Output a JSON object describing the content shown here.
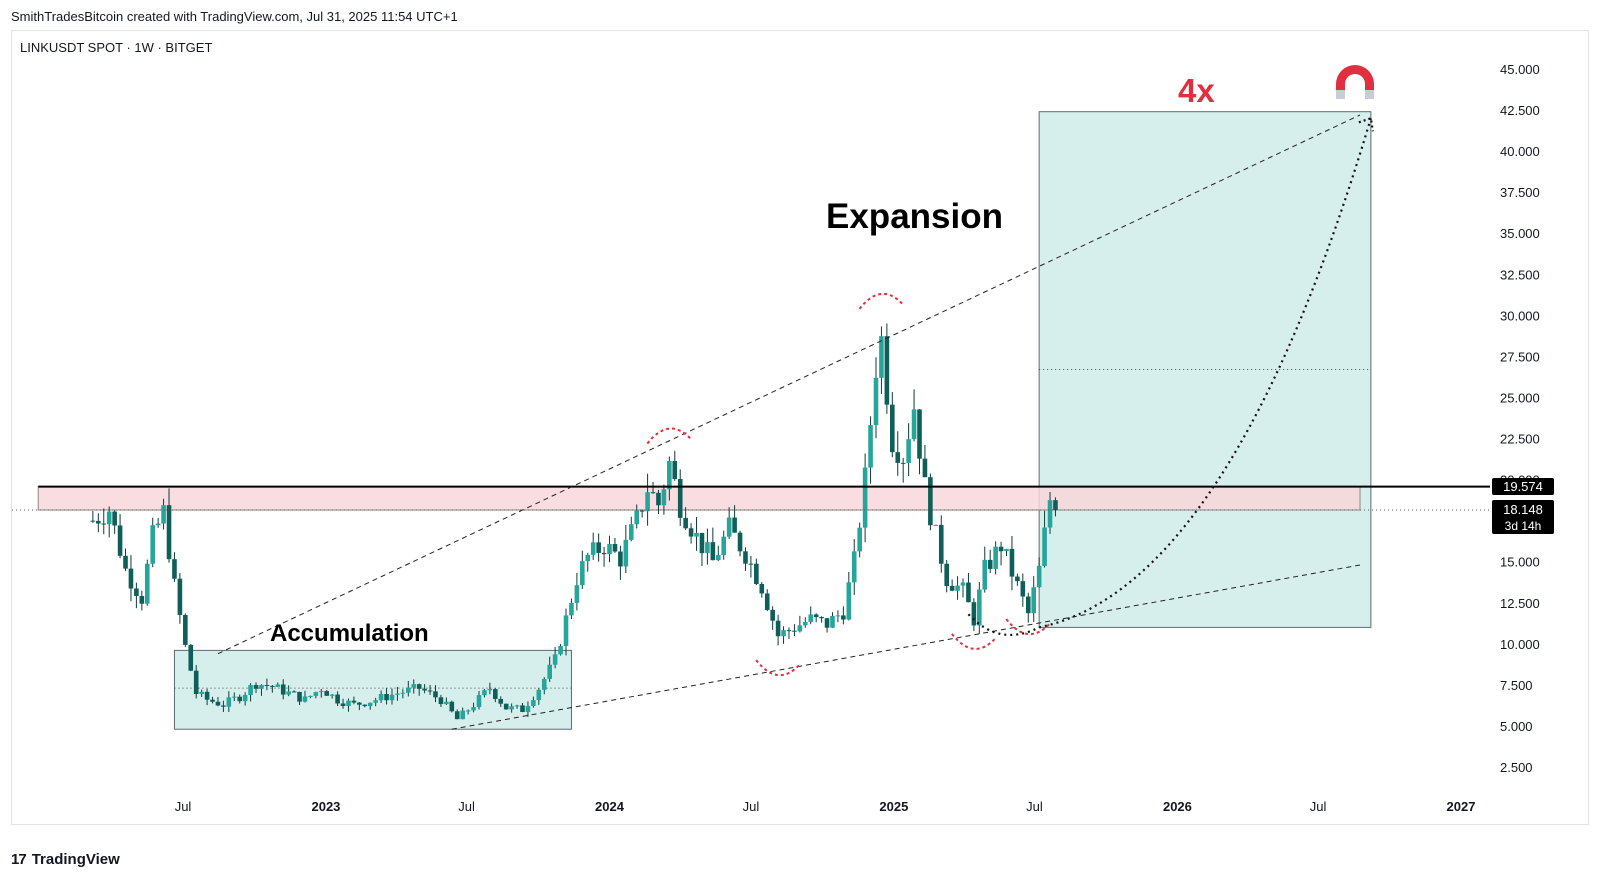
{
  "header": {
    "credit": "SmithTradesBitcoin created with TradingView.com, Jul 31, 2025 11:54 UTC+1",
    "symbol": "LINKUSDT SPOT · 1W · BITGET"
  },
  "footer": {
    "brand_mark": "17",
    "brand_name": "TradingView"
  },
  "colors": {
    "bull": "#26a69a",
    "bear": "#0e5e5a",
    "wick": "#0b3d3a",
    "box_fill": "#d6efec",
    "resistance_fill": "#f8d7da",
    "curve_red": "#e03040",
    "label_red": "#e03040",
    "price_badge": "#000000"
  },
  "annotations": {
    "accumulation": "Accumulation",
    "expansion": "Expansion",
    "target_multiple": "4x",
    "magnet_icon": "magnet-icon"
  },
  "price_badges": {
    "resistance": "19.574",
    "current": "18.148",
    "countdown": "3d 14h"
  },
  "chart_data": {
    "type": "candlestick",
    "symbol": "LINKUSDT",
    "timeframe": "1W",
    "exchange": "BITGET",
    "y_axis": {
      "ylim": [
        1.0,
        47.5
      ],
      "ticks": [
        "45.000",
        "42.500",
        "40.000",
        "37.500",
        "35.000",
        "32.500",
        "30.000",
        "27.500",
        "25.000",
        "22.500",
        "20.000",
        "15.000",
        "12.500",
        "10.000",
        "7.500",
        "5.000",
        "2.500"
      ],
      "tick_values": [
        45,
        42.5,
        40,
        37.5,
        35,
        32.5,
        30,
        27.5,
        25,
        22.5,
        20,
        15,
        12.5,
        10,
        7.5,
        5,
        2.5
      ]
    },
    "x_axis": {
      "xlim": [
        "2022-02-01",
        "2027-03-01"
      ],
      "ticks": [
        {
          "label": "Jul",
          "date": "2022-07-01",
          "year": false
        },
        {
          "label": "2023",
          "date": "2023-01-01",
          "year": true
        },
        {
          "label": "Jul",
          "date": "2023-07-01",
          "year": false
        },
        {
          "label": "2024",
          "date": "2024-01-01",
          "year": true
        },
        {
          "label": "Jul",
          "date": "2024-07-01",
          "year": false
        },
        {
          "label": "2025",
          "date": "2025-01-01",
          "year": true
        },
        {
          "label": "Jul",
          "date": "2025-07-01",
          "year": false
        },
        {
          "label": "2026",
          "date": "2026-01-01",
          "year": true
        },
        {
          "label": "Jul",
          "date": "2026-07-01",
          "year": false
        },
        {
          "label": "2027",
          "date": "2027-01-01",
          "year": true
        }
      ]
    },
    "price_path": [
      [
        "2022-03-07",
        17.5
      ],
      [
        "2022-03-28",
        18.2
      ],
      [
        "2022-04-18",
        14.5
      ],
      [
        "2022-05-09",
        12.8
      ],
      [
        "2022-05-23",
        16.5
      ],
      [
        "2022-06-06",
        18.0
      ],
      [
        "2022-06-20",
        13.5
      ],
      [
        "2022-07-04",
        9.8
      ],
      [
        "2022-07-18",
        7.0
      ],
      [
        "2022-08-01",
        6.6
      ],
      [
        "2022-08-22",
        6.3
      ],
      [
        "2022-09-12",
        6.8
      ],
      [
        "2022-10-03",
        7.6
      ],
      [
        "2022-10-24",
        7.4
      ],
      [
        "2022-11-14",
        7.0
      ],
      [
        "2022-12-05",
        6.6
      ],
      [
        "2022-12-26",
        7.3
      ],
      [
        "2023-01-16",
        6.6
      ],
      [
        "2023-02-06",
        6.3
      ],
      [
        "2023-03-06",
        6.6
      ],
      [
        "2023-04-03",
        7.0
      ],
      [
        "2023-05-01",
        7.3
      ],
      [
        "2023-05-29",
        6.6
      ],
      [
        "2023-06-19",
        5.4
      ],
      [
        "2023-07-10",
        6.3
      ],
      [
        "2023-07-31",
        7.3
      ],
      [
        "2023-08-21",
        6.1
      ],
      [
        "2023-09-11",
        6.0
      ],
      [
        "2023-10-02",
        7.3
      ],
      [
        "2023-10-23",
        9.0
      ],
      [
        "2023-11-06",
        11.5
      ],
      [
        "2023-11-20",
        14.0
      ],
      [
        "2023-12-04",
        15.3
      ],
      [
        "2023-12-25",
        16.0
      ],
      [
        "2024-01-15",
        15.2
      ],
      [
        "2024-02-05",
        17.5
      ],
      [
        "2024-02-19",
        19.5
      ],
      [
        "2024-03-04",
        18.5
      ],
      [
        "2024-03-18",
        21.0
      ],
      [
        "2024-04-01",
        18.5
      ],
      [
        "2024-04-22",
        16.5
      ],
      [
        "2024-05-13",
        15.0
      ],
      [
        "2024-06-03",
        17.0
      ],
      [
        "2024-06-24",
        15.5
      ],
      [
        "2024-07-15",
        13.5
      ],
      [
        "2024-08-05",
        10.5
      ],
      [
        "2024-08-26",
        11.0
      ],
      [
        "2024-09-16",
        11.5
      ],
      [
        "2024-10-07",
        11.2
      ],
      [
        "2024-10-28",
        12.0
      ],
      [
        "2024-11-11",
        15.0
      ],
      [
        "2024-11-25",
        20.0
      ],
      [
        "2024-12-09",
        27.0
      ],
      [
        "2024-12-16",
        28.5
      ],
      [
        "2024-12-30",
        22.5
      ],
      [
        "2025-01-13",
        21.5
      ],
      [
        "2025-01-27",
        24.5
      ],
      [
        "2025-02-10",
        19.5
      ],
      [
        "2025-02-24",
        16.5
      ],
      [
        "2025-03-10",
        14.0
      ],
      [
        "2025-03-31",
        13.2
      ],
      [
        "2025-04-14",
        11.5
      ],
      [
        "2025-04-28",
        14.5
      ],
      [
        "2025-05-19",
        16.0
      ],
      [
        "2025-06-09",
        13.5
      ],
      [
        "2025-06-23",
        11.8
      ],
      [
        "2025-07-07",
        14.5
      ],
      [
        "2025-07-21",
        18.8
      ],
      [
        "2025-07-28",
        18.148
      ]
    ],
    "candle_count": 178,
    "last_close": 18.148,
    "resistance_level": 19.574,
    "resistance_zone": {
      "from": "2022-03-01",
      "to": "2026-08-24",
      "low": 18.148,
      "high": 19.574
    },
    "accumulation_box": {
      "from": "2022-06-20",
      "to": "2023-11-13",
      "low": 4.8,
      "high": 9.6
    },
    "expansion_box": {
      "from": "2025-07-07",
      "to": "2026-09-07",
      "low": 11.0,
      "high": 42.4,
      "mid": 26.7
    },
    "upper_trendline": {
      "from": [
        "2022-08-15",
        9.4
      ],
      "to": [
        "2026-08-24",
        42.2
      ]
    },
    "lower_trendline": {
      "from": [
        "2023-06-12",
        4.8
      ],
      "to": [
        "2026-08-24",
        14.8
      ]
    },
    "projection_curve": {
      "from": [
        "2025-04-07",
        11.8
      ],
      "via": [
        "2025-07-07",
        11.0
      ],
      "to": [
        "2026-09-07",
        42.0
      ]
    }
  }
}
